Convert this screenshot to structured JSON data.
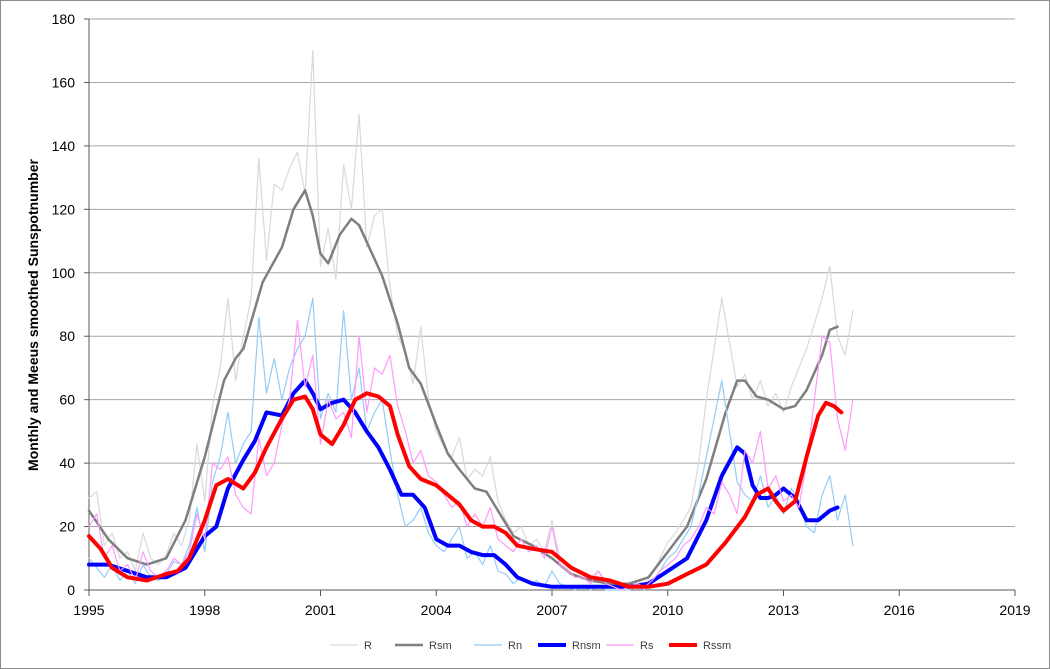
{
  "chart_data": {
    "type": "line",
    "title": "",
    "ylabel": "Monthly and Meeus smoothed Sunspotnumber",
    "xlabel": "",
    "xlim": [
      1995,
      2019
    ],
    "ylim": [
      0,
      180
    ],
    "x_ticks": [
      "1995",
      "1998",
      "2001",
      "2004",
      "2007",
      "2010",
      "2013",
      "2016",
      "2019"
    ],
    "y_ticks": [
      "0",
      "20",
      "40",
      "60",
      "80",
      "100",
      "120",
      "140",
      "160",
      "180"
    ],
    "grid": "horizontal",
    "legend_position": "bottom",
    "series": [
      {
        "name": "R",
        "color": "#d9d9d9",
        "width": 1.2,
        "x": [
          1995.0,
          1995.2,
          1995.4,
          1995.6,
          1995.8,
          1996.0,
          1996.2,
          1996.4,
          1996.6,
          1996.8,
          1997.0,
          1997.2,
          1997.4,
          1997.6,
          1997.8,
          1998.0,
          1998.2,
          1998.4,
          1998.6,
          1998.8,
          1999.0,
          1999.2,
          1999.4,
          1999.6,
          1999.8,
          2000.0,
          2000.2,
          2000.4,
          2000.6,
          2000.8,
          2001.0,
          2001.2,
          2001.4,
          2001.6,
          2001.8,
          2002.0,
          2002.2,
          2002.4,
          2002.6,
          2002.8,
          2003.0,
          2003.2,
          2003.4,
          2003.6,
          2003.8,
          2004.0,
          2004.2,
          2004.4,
          2004.6,
          2004.8,
          2005.0,
          2005.2,
          2005.4,
          2005.6,
          2005.8,
          2006.0,
          2006.2,
          2006.4,
          2006.6,
          2006.8,
          2007.0,
          2007.2,
          2007.4,
          2007.6,
          2007.8,
          2008.0,
          2008.2,
          2008.4,
          2008.6,
          2008.8,
          2009.0,
          2009.2,
          2009.4,
          2009.6,
          2009.8,
          2010.0,
          2010.2,
          2010.4,
          2010.6,
          2010.8,
          2011.0,
          2011.2,
          2011.4,
          2011.6,
          2011.8,
          2012.0,
          2012.2,
          2012.4,
          2012.6,
          2012.8,
          2013.0,
          2013.2,
          2013.4,
          2013.6,
          2013.8,
          2014.0,
          2014.2,
          2014.4,
          2014.6,
          2014.8
        ],
        "y": [
          29,
          31,
          14,
          18,
          10,
          12,
          6,
          18,
          10,
          8,
          11,
          18,
          14,
          22,
          46,
          28,
          58,
          70,
          92,
          66,
          80,
          92,
          136,
          104,
          128,
          126,
          133,
          138,
          125,
          170,
          102,
          114,
          98,
          134,
          120,
          150,
          108,
          118,
          120,
          96,
          80,
          75,
          65,
          83,
          60,
          50,
          45,
          42,
          48,
          35,
          38,
          36,
          42,
          28,
          22,
          18,
          20,
          14,
          16,
          12,
          22,
          10,
          8,
          6,
          5,
          4,
          6,
          3,
          2,
          1,
          2,
          3,
          2,
          5,
          10,
          15,
          18,
          22,
          26,
          40,
          60,
          76,
          92,
          78,
          64,
          68,
          60,
          66,
          58,
          62,
          56,
          64,
          70,
          76,
          84,
          92,
          102,
          80,
          74,
          88
        ]
      },
      {
        "name": "Rsm",
        "color": "#7f7f7f",
        "width": 2.5,
        "x": [
          1995.0,
          1995.5,
          1996.0,
          1996.5,
          1997.0,
          1997.5,
          1998.0,
          1998.5,
          1998.8,
          1999.0,
          1999.5,
          2000.0,
          2000.3,
          2000.6,
          2000.8,
          2001.0,
          2001.2,
          2001.5,
          2001.8,
          2002.0,
          2002.3,
          2002.6,
          2003.0,
          2003.3,
          2003.6,
          2004.0,
          2004.3,
          2004.6,
          2005.0,
          2005.3,
          2005.6,
          2006.0,
          2006.5,
          2007.0,
          2007.5,
          2008.0,
          2008.5,
          2009.0,
          2009.5,
          2010.0,
          2010.5,
          2011.0,
          2011.5,
          2011.8,
          2012.0,
          2012.3,
          2012.6,
          2013.0,
          2013.3,
          2013.6,
          2014.0,
          2014.2,
          2014.4
        ],
        "y": [
          25,
          16,
          10,
          8,
          10,
          22,
          42,
          66,
          73,
          76,
          97,
          108,
          120,
          126,
          118,
          106,
          103,
          112,
          117,
          115,
          107,
          99,
          84,
          70,
          65,
          52,
          43,
          38,
          32,
          31,
          25,
          17,
          14,
          10,
          5,
          3,
          2,
          2,
          4,
          12,
          20,
          35,
          56,
          66,
          66,
          61,
          60,
          57,
          58,
          63,
          74,
          82,
          83
        ]
      },
      {
        "name": "Rn",
        "color": "#92cdf8",
        "width": 1.2,
        "x": [
          1995.0,
          1995.2,
          1995.4,
          1995.6,
          1995.8,
          1996.0,
          1996.2,
          1996.4,
          1996.6,
          1996.8,
          1997.0,
          1997.2,
          1997.4,
          1997.6,
          1997.8,
          1998.0,
          1998.2,
          1998.4,
          1998.6,
          1998.8,
          1999.0,
          1999.2,
          1999.4,
          1999.6,
          1999.8,
          2000.0,
          2000.2,
          2000.4,
          2000.6,
          2000.8,
          2001.0,
          2001.2,
          2001.4,
          2001.6,
          2001.8,
          2002.0,
          2002.2,
          2002.4,
          2002.6,
          2002.8,
          2003.0,
          2003.2,
          2003.4,
          2003.6,
          2003.8,
          2004.0,
          2004.2,
          2004.4,
          2004.6,
          2004.8,
          2005.0,
          2005.2,
          2005.4,
          2005.6,
          2005.8,
          2006.0,
          2006.2,
          2006.4,
          2006.6,
          2006.8,
          2007.0,
          2007.2,
          2007.4,
          2007.6,
          2007.8,
          2008.0,
          2008.2,
          2008.4,
          2008.6,
          2008.8,
          2009.0,
          2009.2,
          2009.4,
          2009.6,
          2009.8,
          2010.0,
          2010.2,
          2010.4,
          2010.6,
          2010.8,
          2011.0,
          2011.2,
          2011.4,
          2011.6,
          2011.8,
          2012.0,
          2012.2,
          2012.4,
          2012.6,
          2012.8,
          2013.0,
          2013.2,
          2013.4,
          2013.6,
          2013.8,
          2014.0,
          2014.2,
          2014.4,
          2014.6,
          2014.8
        ],
        "y": [
          10,
          7,
          4,
          8,
          3,
          6,
          2,
          8,
          4,
          3,
          5,
          9,
          8,
          14,
          26,
          12,
          34,
          42,
          56,
          40,
          46,
          50,
          86,
          62,
          73,
          60,
          70,
          76,
          80,
          92,
          54,
          62,
          56,
          88,
          60,
          70,
          50,
          56,
          60,
          44,
          30,
          20,
          22,
          26,
          18,
          14,
          12,
          16,
          20,
          10,
          12,
          8,
          14,
          6,
          5,
          2,
          4,
          2,
          3,
          1,
          6,
          2,
          1,
          0,
          1,
          0,
          1,
          0,
          0,
          0,
          0,
          1,
          0,
          2,
          6,
          10,
          12,
          16,
          20,
          30,
          42,
          54,
          66,
          50,
          34,
          30,
          28,
          36,
          26,
          30,
          24,
          32,
          28,
          20,
          18,
          30,
          36,
          22,
          30,
          14
        ]
      },
      {
        "name": "Rnsm",
        "color": "#0000ff",
        "width": 4,
        "x": [
          1995.0,
          1995.5,
          1996.0,
          1996.5,
          1997.0,
          1997.5,
          1998.0,
          1998.3,
          1998.6,
          1999.0,
          1999.3,
          1999.6,
          2000.0,
          2000.3,
          2000.6,
          2000.8,
          2001.0,
          2001.3,
          2001.6,
          2001.9,
          2002.2,
          2002.5,
          2002.8,
          2003.1,
          2003.4,
          2003.7,
          2004.0,
          2004.3,
          2004.6,
          2004.9,
          2005.2,
          2005.5,
          2005.8,
          2006.1,
          2006.5,
          2007.0,
          2007.5,
          2008.0,
          2008.5,
          2009.0,
          2009.5,
          2010.0,
          2010.5,
          2011.0,
          2011.4,
          2011.8,
          2012.0,
          2012.2,
          2012.4,
          2012.6,
          2012.8,
          2013.0,
          2013.3,
          2013.6,
          2013.9,
          2014.2,
          2014.4
        ],
        "y": [
          8,
          8,
          6,
          4,
          4,
          7,
          17,
          20,
          32,
          41,
          47,
          56,
          55,
          62,
          66,
          62,
          57,
          59,
          60,
          56,
          50,
          45,
          38,
          30,
          30,
          26,
          16,
          14,
          14,
          12,
          11,
          11,
          8,
          4,
          2,
          1,
          1,
          1,
          1,
          1,
          2,
          6,
          10,
          22,
          36,
          45,
          43,
          33,
          29,
          29,
          30,
          32,
          29,
          22,
          22,
          25,
          26
        ]
      },
      {
        "name": "Rs",
        "color": "#ff99ff",
        "width": 1.2,
        "x": [
          1995.0,
          1995.2,
          1995.4,
          1995.6,
          1995.8,
          1996.0,
          1996.2,
          1996.4,
          1996.6,
          1996.8,
          1997.0,
          1997.2,
          1997.4,
          1997.6,
          1997.8,
          1998.0,
          1998.2,
          1998.4,
          1998.6,
          1998.8,
          1999.0,
          1999.2,
          1999.4,
          1999.6,
          1999.8,
          2000.0,
          2000.2,
          2000.4,
          2000.6,
          2000.8,
          2001.0,
          2001.2,
          2001.4,
          2001.6,
          2001.8,
          2002.0,
          2002.2,
          2002.4,
          2002.6,
          2002.8,
          2003.0,
          2003.2,
          2003.4,
          2003.6,
          2003.8,
          2004.0,
          2004.2,
          2004.4,
          2004.6,
          2004.8,
          2005.0,
          2005.2,
          2005.4,
          2005.6,
          2005.8,
          2006.0,
          2006.2,
          2006.4,
          2006.6,
          2006.8,
          2007.0,
          2007.2,
          2007.4,
          2007.6,
          2007.8,
          2008.0,
          2008.2,
          2008.4,
          2008.6,
          2008.8,
          2009.0,
          2009.2,
          2009.4,
          2009.6,
          2009.8,
          2010.0,
          2010.2,
          2010.4,
          2010.6,
          2010.8,
          2011.0,
          2011.2,
          2011.4,
          2011.6,
          2011.8,
          2012.0,
          2012.2,
          2012.4,
          2012.6,
          2012.8,
          2013.0,
          2013.2,
          2013.4,
          2013.6,
          2013.8,
          2014.0,
          2014.2,
          2014.4,
          2014.6,
          2014.8
        ],
        "y": [
          20,
          24,
          10,
          14,
          6,
          8,
          3,
          12,
          6,
          4,
          6,
          10,
          8,
          12,
          24,
          16,
          40,
          38,
          42,
          30,
          26,
          24,
          48,
          36,
          40,
          52,
          60,
          85,
          64,
          74,
          46,
          60,
          54,
          56,
          48,
          80,
          56,
          70,
          68,
          74,
          58,
          50,
          40,
          44,
          36,
          34,
          30,
          26,
          28,
          20,
          24,
          20,
          26,
          16,
          14,
          12,
          16,
          12,
          14,
          10,
          20,
          8,
          6,
          4,
          4,
          2,
          6,
          2,
          1,
          0,
          1,
          2,
          1,
          3,
          6,
          8,
          10,
          14,
          16,
          20,
          26,
          24,
          34,
          30,
          24,
          44,
          40,
          50,
          32,
          36,
          28,
          30,
          26,
          40,
          60,
          80,
          78,
          54,
          44,
          60
        ]
      },
      {
        "name": "Rssm",
        "color": "#ff0000",
        "width": 4,
        "x": [
          1995.0,
          1995.3,
          1995.6,
          1996.0,
          1996.5,
          1997.0,
          1997.3,
          1997.6,
          1998.0,
          1998.3,
          1998.6,
          1999.0,
          1999.3,
          1999.6,
          2000.0,
          2000.3,
          2000.6,
          2000.8,
          2001.0,
          2001.3,
          2001.6,
          2001.9,
          2002.2,
          2002.5,
          2002.8,
          2003.0,
          2003.3,
          2003.6,
          2004.0,
          2004.3,
          2004.6,
          2004.9,
          2005.2,
          2005.5,
          2005.8,
          2006.1,
          2006.5,
          2007.0,
          2007.5,
          2008.0,
          2008.5,
          2009.0,
          2009.5,
          2010.0,
          2010.5,
          2011.0,
          2011.5,
          2012.0,
          2012.3,
          2012.6,
          2012.8,
          2013.0,
          2013.3,
          2013.6,
          2013.9,
          2014.1,
          2014.3,
          2014.5
        ],
        "y": [
          17,
          13,
          7,
          4,
          3,
          5,
          6,
          10,
          22,
          33,
          35,
          32,
          37,
          45,
          54,
          60,
          61,
          57,
          49,
          46,
          52,
          60,
          62,
          61,
          58,
          49,
          39,
          35,
          33,
          30,
          27,
          22,
          20,
          20,
          18,
          14,
          13,
          12,
          7,
          4,
          3,
          1,
          1,
          2,
          5,
          8,
          15,
          23,
          30,
          32,
          28,
          25,
          28,
          42,
          55,
          59,
          58,
          56
        ]
      }
    ]
  }
}
